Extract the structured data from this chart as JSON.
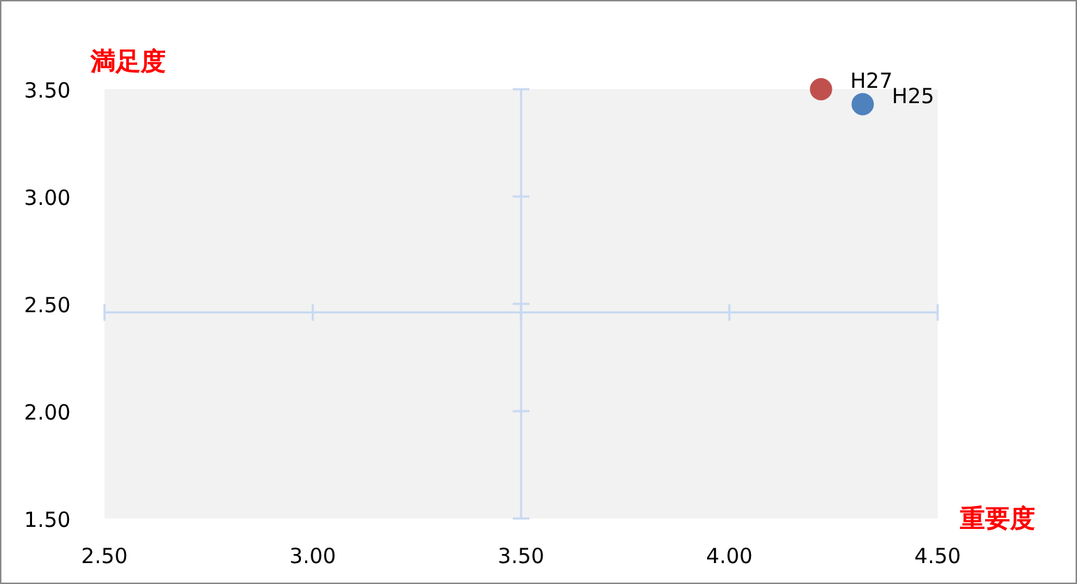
{
  "chart_data": {
    "type": "scatter",
    "xlabel": "重要度",
    "ylabel": "満足度",
    "xlim": [
      2.5,
      4.5
    ],
    "ylim": [
      1.5,
      3.5
    ],
    "xticks": [
      {
        "value": 2.5,
        "label": "2.50"
      },
      {
        "value": 3,
        "label": "3.00"
      },
      {
        "value": 3.5,
        "label": "3.50"
      },
      {
        "value": 4,
        "label": "4.00"
      },
      {
        "value": 4.5,
        "label": "4.50"
      }
    ],
    "yticks": [
      {
        "value": 1.5,
        "label": "1.50"
      },
      {
        "value": 2,
        "label": "2.00"
      },
      {
        "value": 2.5,
        "label": "2.50"
      },
      {
        "value": 3,
        "label": "3.00"
      },
      {
        "value": 3.5,
        "label": "3.50"
      }
    ],
    "series": [
      {
        "name": "H27",
        "color": "#c0504d",
        "x": [
          4.22
        ],
        "values": [
          3.5
        ]
      },
      {
        "name": "H25",
        "color": "#4f81bd",
        "x": [
          4.32
        ],
        "values": [
          3.43
        ]
      }
    ],
    "ref_lines": [
      {
        "axis": "x",
        "value": 3.5,
        "color": "#c6d9f1"
      },
      {
        "axis": "y",
        "value": 2.46,
        "color": "#c6d9f1"
      }
    ],
    "marker": "circle",
    "grid": false
  }
}
